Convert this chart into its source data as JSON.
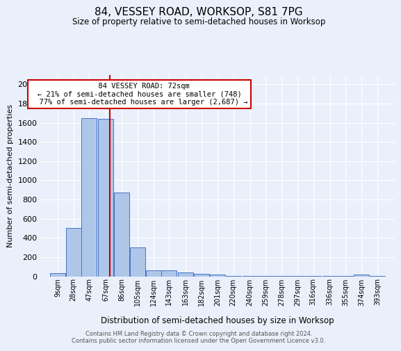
{
  "title": "84, VESSEY ROAD, WORKSOP, S81 7PG",
  "subtitle": "Size of property relative to semi-detached houses in Worksop",
  "xlabel": "Distribution of semi-detached houses by size in Worksop",
  "ylabel": "Number of semi-detached properties",
  "footer_line1": "Contains HM Land Registry data © Crown copyright and database right 2024.",
  "footer_line2": "Contains public sector information licensed under the Open Government Licence v3.0.",
  "bin_labels": [
    "9sqm",
    "28sqm",
    "47sqm",
    "67sqm",
    "86sqm",
    "105sqm",
    "124sqm",
    "143sqm",
    "163sqm",
    "182sqm",
    "201sqm",
    "220sqm",
    "240sqm",
    "259sqm",
    "278sqm",
    "297sqm",
    "316sqm",
    "336sqm",
    "355sqm",
    "374sqm",
    "393sqm"
  ],
  "bar_values": [
    30,
    500,
    1650,
    1640,
    870,
    300,
    65,
    65,
    40,
    25,
    15,
    5,
    5,
    5,
    5,
    5,
    5,
    5,
    5,
    20,
    5
  ],
  "bar_color": "#aec6e8",
  "bar_edge_color": "#4472c4",
  "background_color": "#eaf0fb",
  "grid_color": "#ffffff",
  "ylim": [
    0,
    2100
  ],
  "yticks": [
    0,
    200,
    400,
    600,
    800,
    1000,
    1200,
    1400,
    1600,
    1800,
    2000
  ],
  "property_size": 72,
  "property_label": "84 VESSEY ROAD: 72sqm",
  "pct_smaller": 21,
  "count_smaller": 748,
  "pct_larger": 77,
  "count_larger": 2687,
  "annotation_box_color": "#ffffff",
  "annotation_box_edge": "#cc0000",
  "red_line_color": "#cc0000",
  "bin_centers": [
    9,
    28,
    47,
    67,
    86,
    105,
    124,
    143,
    163,
    182,
    201,
    220,
    240,
    259,
    278,
    297,
    316,
    336,
    355,
    374,
    393
  ],
  "bin_width": 19
}
